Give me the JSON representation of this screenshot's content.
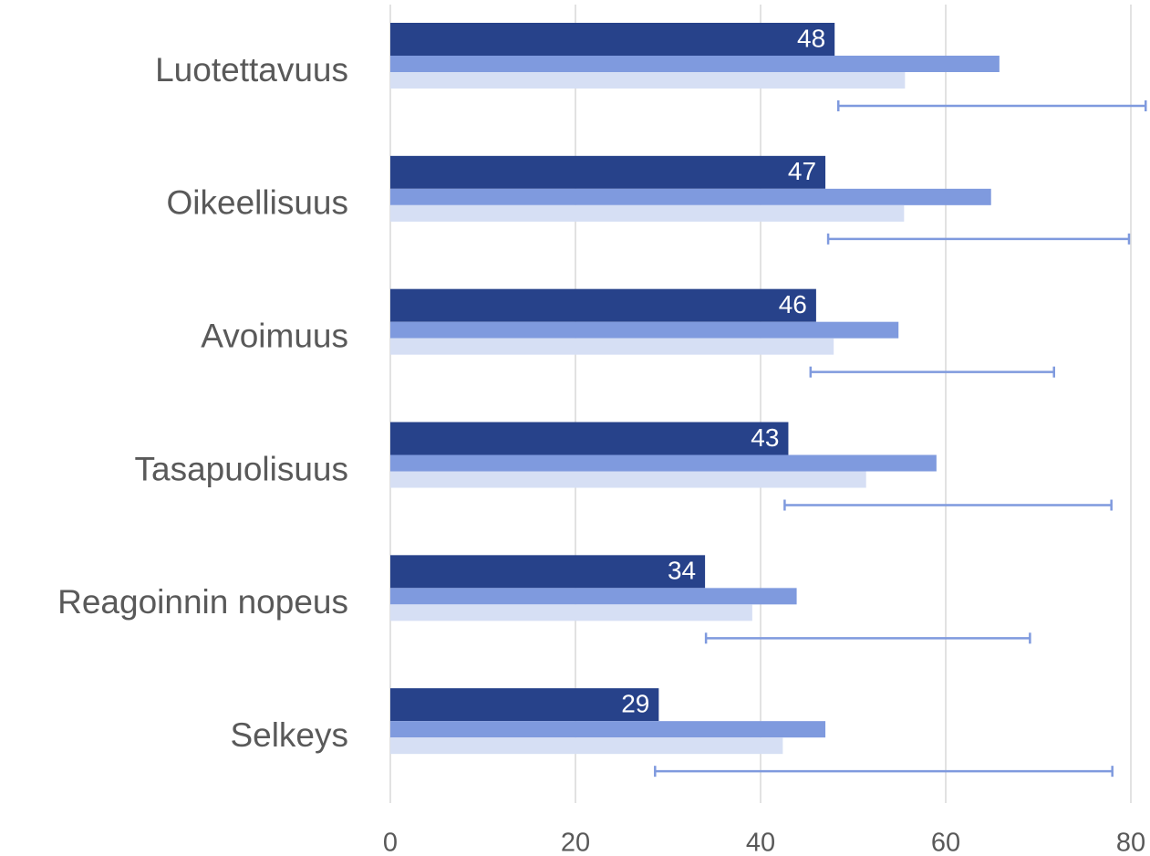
{
  "chart_data": {
    "type": "bar",
    "orientation": "horizontal",
    "categories": [
      "Luotettavuus",
      "Oikeellisuus",
      "Avoimuus",
      "Tasapuolisuus",
      "Reagoinnin nopeus",
      "Selkeys"
    ],
    "series": [
      {
        "color": "#27428a",
        "values": [
          48,
          47,
          46,
          43,
          34,
          29
        ]
      },
      {
        "color": "#7f9ade",
        "values": [
          65.8,
          64.9,
          54.9,
          59.0,
          43.9,
          47.0
        ]
      },
      {
        "color": "#d6dff4",
        "values": [
          55.6,
          55.5,
          47.9,
          51.4,
          39.1,
          42.4
        ]
      }
    ],
    "ranges": [
      [
        48.4,
        81.6
      ],
      [
        47.3,
        79.8
      ],
      [
        45.4,
        71.7
      ],
      [
        42.6,
        77.9
      ],
      [
        34.1,
        69.1
      ],
      [
        28.6,
        78.0
      ]
    ],
    "range_color": "#7f9ade",
    "xlim": [
      0,
      80
    ],
    "xticks": [
      0,
      20,
      40,
      60,
      80
    ],
    "grid": true
  }
}
